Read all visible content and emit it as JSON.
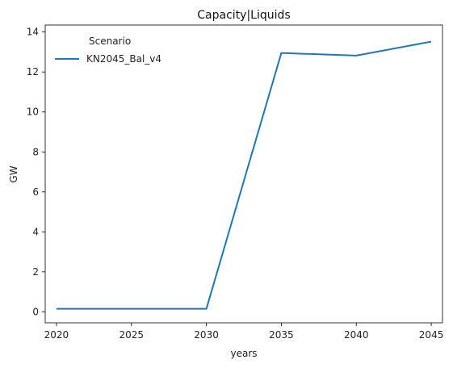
{
  "chart_data": {
    "type": "line",
    "title": "Capacity|Liquids",
    "xlabel": "years",
    "ylabel": "GW",
    "x": [
      2020,
      2025,
      2030,
      2035,
      2040,
      2045
    ],
    "xticks": [
      "2020",
      "2025",
      "2030",
      "2035",
      "2040",
      "2045"
    ],
    "yticks": [
      "0",
      "2",
      "4",
      "6",
      "8",
      "10",
      "12",
      "14"
    ],
    "xlim": [
      2019.25,
      2045.75
    ],
    "ylim": [
      -0.55,
      14.35
    ],
    "grid": false,
    "legend": {
      "title": "Scenario",
      "position": "top-left"
    },
    "series": [
      {
        "name": "KN2045_Bal_v4",
        "color": "#1f77b4",
        "values": [
          0.15,
          0.15,
          0.15,
          12.95,
          12.82,
          13.52
        ]
      }
    ]
  }
}
